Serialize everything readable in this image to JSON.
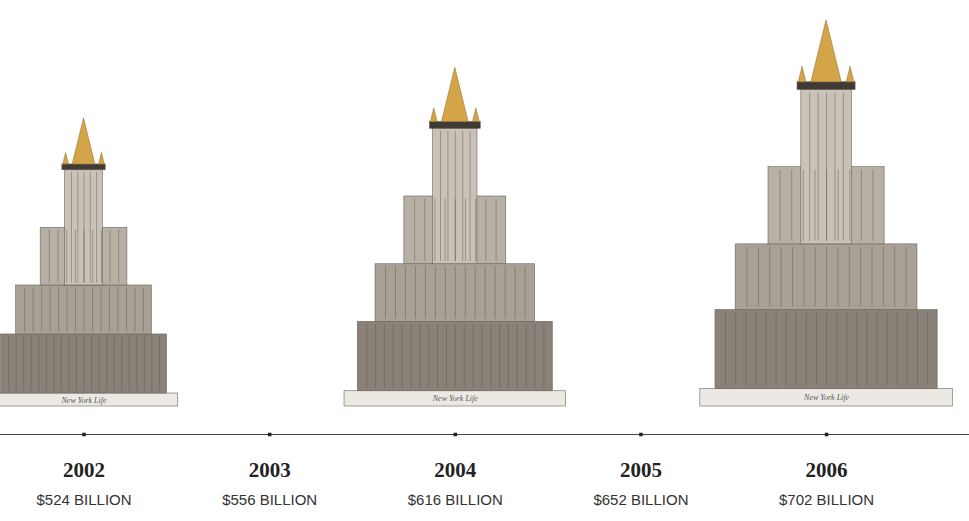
{
  "chart_data": {
    "type": "pictograph",
    "categories": [
      "2002",
      "2003",
      "2004",
      "2005",
      "2006"
    ],
    "values": [
      524,
      556,
      616,
      652,
      702
    ],
    "value_labels": [
      "$524 BILLION",
      "$556 BILLION",
      "$616 BILLION",
      "$652 BILLION",
      "$702 BILLION"
    ],
    "data_labels": true,
    "annotation": "New York Life",
    "color": "#d4a548"
  }
}
